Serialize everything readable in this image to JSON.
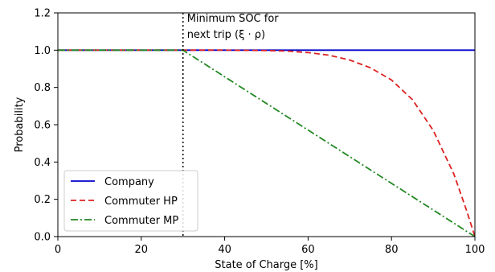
{
  "chart_data": {
    "type": "line",
    "title": "",
    "xlabel": "State of Charge [%]",
    "ylabel": "Probability",
    "xlim": [
      0,
      100
    ],
    "ylim": [
      0,
      1.2
    ],
    "xticks": [
      0,
      20,
      40,
      60,
      80,
      100
    ],
    "xtick_labels": [
      "0",
      "20",
      "40",
      "60",
      "80",
      "100"
    ],
    "yticks": [
      0,
      0.2,
      0.4,
      0.6,
      0.8,
      1.0,
      1.2
    ],
    "ytick_labels": [
      "0.0",
      "0.2",
      "0.4",
      "0.6",
      "0.8",
      "1.0",
      "1.2"
    ],
    "grid": false,
    "legend_position": "lower-left",
    "series": [
      {
        "name": "Company",
        "color": "#0000cc",
        "style": "solid",
        "x": [
          0,
          100
        ],
        "y": [
          1.0,
          1.0
        ]
      },
      {
        "name": "Commuter HP",
        "color": "#dd2222",
        "style": "dashed",
        "x": [
          0,
          30,
          40,
          50,
          55,
          60,
          65,
          70,
          75,
          80,
          85,
          90,
          95,
          98,
          100
        ],
        "y": [
          1.0,
          1.0,
          1.0,
          0.998,
          0.995,
          0.987,
          0.973,
          0.947,
          0.905,
          0.84,
          0.735,
          0.57,
          0.333,
          0.14,
          0.0
        ]
      },
      {
        "name": "Commuter MP",
        "color": "#228822",
        "style": "dashdot",
        "x": [
          0,
          30,
          100
        ],
        "y": [
          1.0,
          1.0,
          0.0
        ]
      }
    ],
    "annotations": [
      {
        "type": "vline",
        "x": 30,
        "style": "dotted",
        "color": "#000000",
        "text_lines": [
          "Minimum SOC for",
          "next trip (ξ · ρ)"
        ]
      }
    ]
  }
}
